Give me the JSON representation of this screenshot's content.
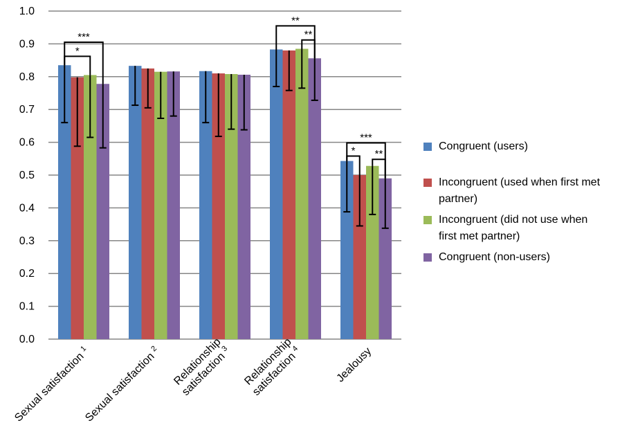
{
  "chart_data": {
    "type": "bar",
    "title": "",
    "xlabel": "",
    "ylabel": "",
    "ylim": [
      0,
      1.0
    ],
    "ytick_step": 0.1,
    "ytick_labels": [
      "0.0",
      "0.1",
      "0.2",
      "0.3",
      "0.4",
      "0.5",
      "0.6",
      "0.7",
      "0.8",
      "0.9",
      "1.0"
    ],
    "grid": "horizontal",
    "legend_position": "right",
    "categories": [
      {
        "lines": [
          "Sexual satisfaction"
        ],
        "sup": "1"
      },
      {
        "lines": [
          "Sexual satisfaction"
        ],
        "sup": "2"
      },
      {
        "lines": [
          "Relationship",
          "satisfaction"
        ],
        "sup": "3"
      },
      {
        "lines": [
          "Relationship",
          "satisfaction"
        ],
        "sup": "4"
      },
      {
        "lines": [
          "Jealousy"
        ],
        "sup": ""
      }
    ],
    "series": [
      {
        "name": "Congruent (users)",
        "legend_lines": [
          "Congruent (users)"
        ],
        "color": "#4f81bd",
        "values": [
          0.835,
          0.833,
          0.817,
          0.883,
          0.543
        ],
        "error_low": [
          0.66,
          0.713,
          0.66,
          0.77,
          0.388
        ],
        "error_high": [
          0.835,
          0.833,
          0.817,
          0.883,
          0.543
        ]
      },
      {
        "name": "Incongruent (used when first met partner)",
        "legend_lines": [
          "Incongruent (used when first met",
          "partner)"
        ],
        "color": "#c0504d",
        "values": [
          0.798,
          0.825,
          0.81,
          0.88,
          0.5
        ],
        "error_low": [
          0.588,
          0.705,
          0.618,
          0.758,
          0.345
        ],
        "error_high": [
          0.798,
          0.825,
          0.81,
          0.88,
          0.5
        ]
      },
      {
        "name": "Incongruent (did not use when first met partner)",
        "legend_lines": [
          "Incongruent (did not use when",
          "first met partner)"
        ],
        "color": "#9bbb59",
        "values": [
          0.805,
          0.815,
          0.808,
          0.885,
          0.528
        ],
        "error_low": [
          0.615,
          0.673,
          0.64,
          0.765,
          0.38
        ],
        "error_high": [
          0.805,
          0.815,
          0.808,
          0.885,
          0.528
        ]
      },
      {
        "name": "Congruent (non-users)",
        "legend_lines": [
          "Congruent (non-users)"
        ],
        "color": "#8064a2",
        "values": [
          0.778,
          0.816,
          0.806,
          0.856,
          0.49
        ],
        "error_low": [
          0.583,
          0.68,
          0.638,
          0.728,
          0.338
        ],
        "error_high": [
          0.778,
          0.816,
          0.806,
          0.856,
          0.49
        ]
      }
    ],
    "significance": [
      {
        "category": 0,
        "from": 0,
        "to": 3,
        "y": 0.905,
        "label": "***"
      },
      {
        "category": 0,
        "from": 0,
        "to": 2,
        "y": 0.862,
        "label": "*"
      },
      {
        "category": 3,
        "from": 0,
        "to": 3,
        "y": 0.955,
        "label": "**"
      },
      {
        "category": 3,
        "from": 2,
        "to": 3,
        "y": 0.912,
        "label": "**"
      },
      {
        "category": 4,
        "from": 0,
        "to": 3,
        "y": 0.598,
        "label": "***"
      },
      {
        "category": 4,
        "from": 0,
        "to": 1,
        "y": 0.558,
        "label": "*"
      },
      {
        "category": 4,
        "from": 2,
        "to": 3,
        "y": 0.548,
        "label": "**"
      }
    ]
  }
}
